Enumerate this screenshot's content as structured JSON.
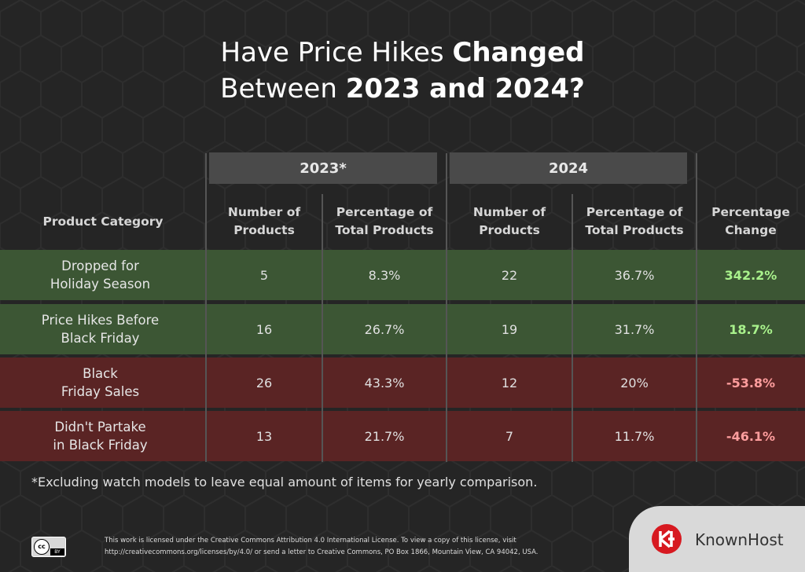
{
  "header": {
    "title": [
      "Have Price Hikes",
      "Changed",
      "Between",
      "2023 and 2024",
      "?"
    ]
  },
  "table": {
    "groups": [
      {
        "label": "2023*",
        "span": [
          1,
          2
        ]
      },
      {
        "label": "2024",
        "span": [
          3,
          4
        ]
      }
    ],
    "columns": [
      "Product Category",
      "Number of\nProducts",
      "Percentage  of\nTotal Products",
      "Number of\nProducts",
      "Percentage of\nTotal Products",
      "Percentage\nChange"
    ],
    "rows": [
      {
        "category": "Dropped for\nHoliday Season",
        "color": "#3c5634",
        "change_color": "#a9f28c",
        "cells": [
          "5",
          "8.3%",
          "22",
          "36.7%",
          "342.2%"
        ]
      },
      {
        "category": "Price Hikes Before\nBlack Friday",
        "color": "#3c5634",
        "change_color": "#a9f28c",
        "cells": [
          "16",
          "26.7%",
          "19",
          "31.7%",
          "18.7%"
        ]
      },
      {
        "category": "Black\nFriday Sales",
        "color": "#5a2424",
        "change_color": "#ff9e9e",
        "cells": [
          "26",
          "43.3%",
          "12",
          "20%",
          "-53.8%"
        ]
      },
      {
        "category": "Didn't Partake\nin Black Friday",
        "color": "#5a2424",
        "change_color": "#ff9e9e",
        "cells": [
          "13",
          "21.7%",
          "7",
          "11.7%",
          "-46.1%"
        ]
      }
    ]
  },
  "footnote": "*Excluding watch models to leave equal amount of items for yearly comparison.",
  "footer": {
    "badge": {
      "icon": "cc",
      "label": "BY"
    },
    "license": "This work is licensed under the Creative Commons Attribution 4.0 International License. To view a copy of this license, visit\nhttp://creativecommons.org/licenses/by/4.0/ or send a letter to Creative Commons, PO Box 1866, Mountain View, CA 94042, USA.",
    "brand": "KnownHost"
  }
}
